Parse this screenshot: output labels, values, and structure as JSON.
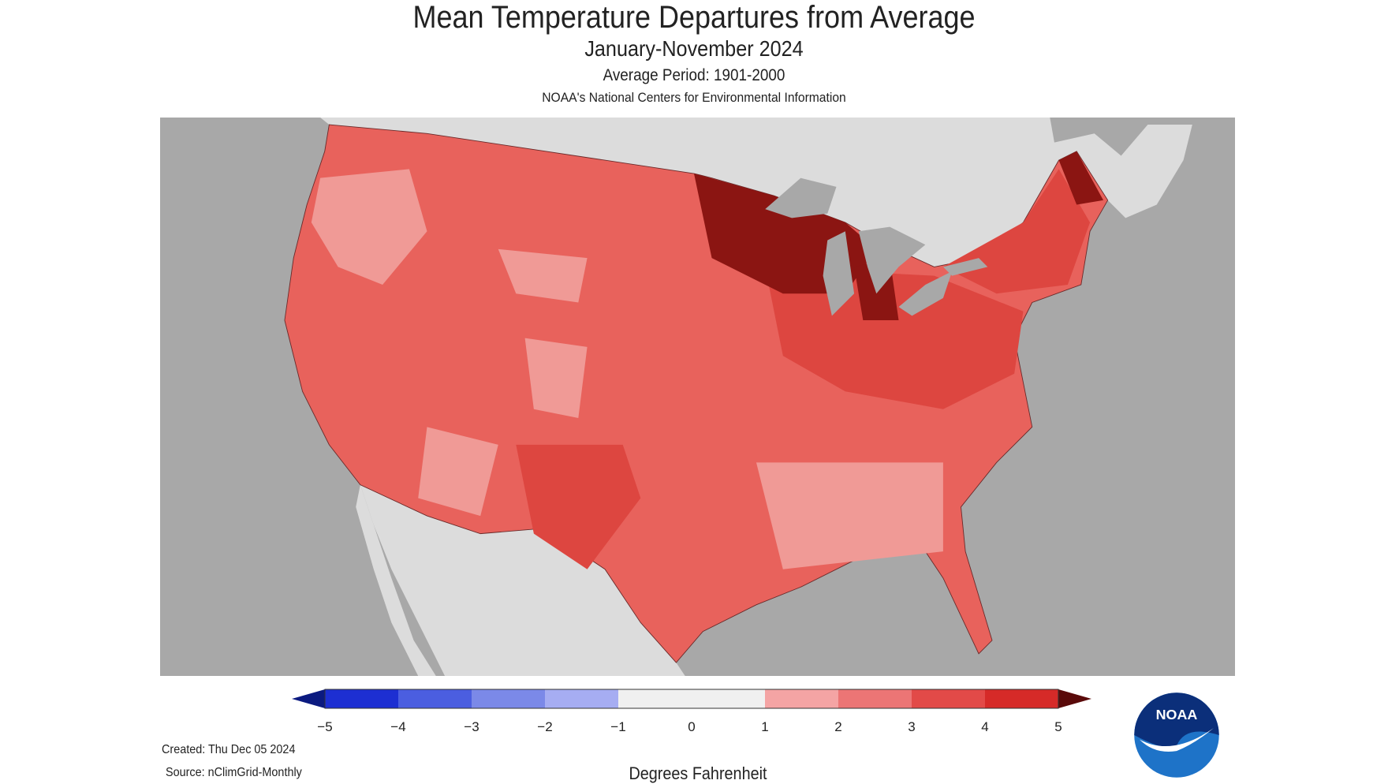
{
  "header": {
    "title": "Mean Temperature Departures from Average",
    "subtitle": "January-November 2024",
    "average_period": "Average Period: 1901-2000",
    "organization": "NOAA's National Centers for Environmental Information"
  },
  "map": {
    "region": "Contiguous United States",
    "variable": "mean temperature departure",
    "colors": {
      "ocean": "#a8a8a8",
      "non_us_land": "#dcdcdc",
      "lakes": "#a8a8a8"
    }
  },
  "legend": {
    "units_label": "Degrees Fahrenheit",
    "ticks": [
      "−5",
      "−4",
      "−3",
      "−2",
      "−1",
      "0",
      "1",
      "2",
      "3",
      "4",
      "5"
    ],
    "bins": [
      {
        "range": [
          -5,
          -4
        ],
        "color": "#1d2fd2"
      },
      {
        "range": [
          -4,
          -3
        ],
        "color": "#4b5ee0"
      },
      {
        "range": [
          -3,
          -2
        ],
        "color": "#7b89e8"
      },
      {
        "range": [
          -2,
          -1
        ],
        "color": "#a6adf2"
      },
      {
        "range": [
          -1,
          0
        ],
        "color": "#f0f0f0"
      },
      {
        "range": [
          0,
          1
        ],
        "color": "#f0f0f0"
      },
      {
        "range": [
          1,
          2
        ],
        "color": "#f4a4a4"
      },
      {
        "range": [
          2,
          3
        ],
        "color": "#ec7575"
      },
      {
        "range": [
          3,
          4
        ],
        "color": "#e24a48"
      },
      {
        "range": [
          4,
          5
        ],
        "color": "#d62a28"
      }
    ],
    "under_color": "#0b1a80",
    "over_color": "#5a0a0a"
  },
  "footer": {
    "created": "Created: Thu Dec 05 2024",
    "source": "Source: nClimGrid-Monthly",
    "logo_text": "NOAA"
  }
}
